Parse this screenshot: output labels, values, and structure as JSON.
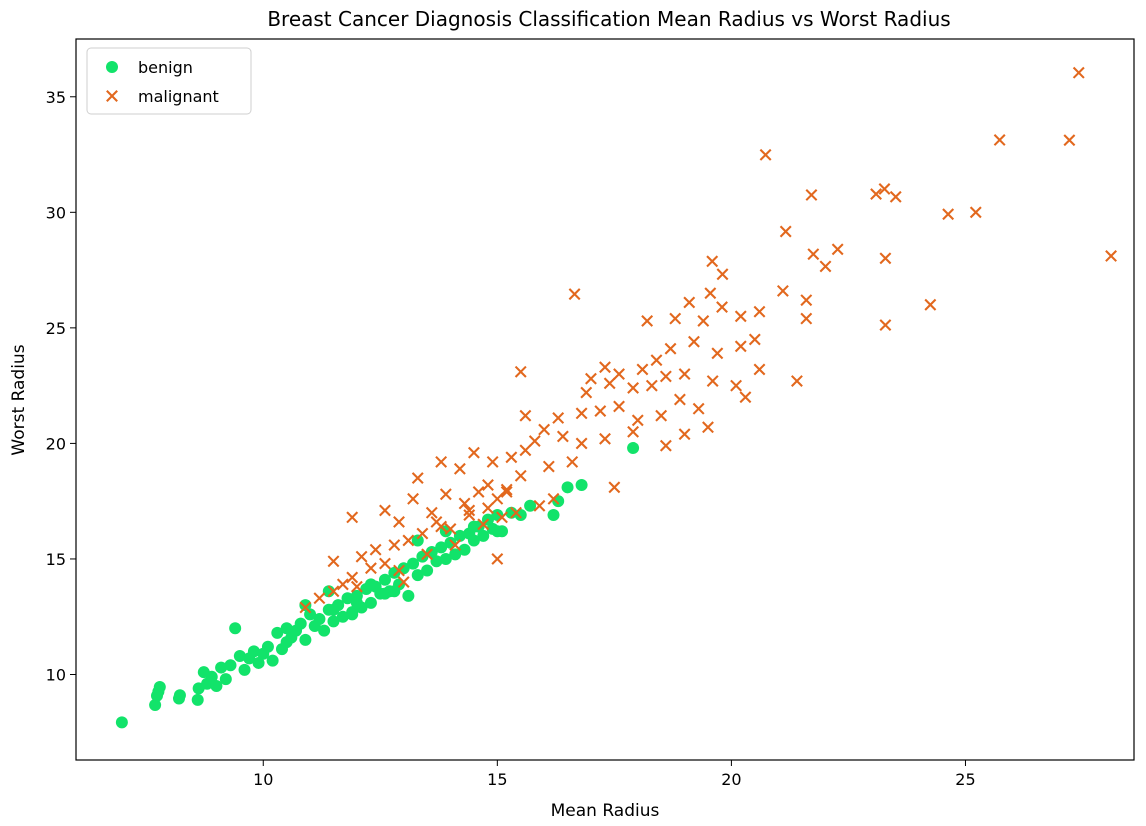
{
  "chart_data": {
    "type": "scatter",
    "title": "Breast Cancer Diagnosis Classification Mean Radius vs Worst Radius",
    "xlabel": "Mean Radius",
    "ylabel": "Worst Radius",
    "xlim": [
      6.0,
      28.6
    ],
    "ylim": [
      6.3,
      37.5
    ],
    "xticks": [
      10,
      15,
      20,
      25
    ],
    "yticks": [
      10,
      15,
      20,
      25,
      30,
      35
    ],
    "grid": false,
    "legend_position": "upper-left",
    "series": [
      {
        "name": "benign",
        "marker": "circle",
        "color": "#12e36a",
        "points": [
          [
            6.98,
            7.93
          ],
          [
            7.69,
            8.68
          ],
          [
            7.73,
            9.08
          ],
          [
            7.76,
            9.26
          ],
          [
            7.79,
            9.46
          ],
          [
            8.2,
            8.96
          ],
          [
            8.22,
            9.1
          ],
          [
            8.6,
            8.9
          ],
          [
            8.62,
            9.4
          ],
          [
            8.73,
            10.1
          ],
          [
            8.8,
            9.6
          ],
          [
            8.9,
            9.9
          ],
          [
            9.0,
            9.5
          ],
          [
            9.1,
            10.3
          ],
          [
            9.2,
            9.8
          ],
          [
            9.3,
            10.4
          ],
          [
            9.4,
            12.0
          ],
          [
            9.5,
            10.8
          ],
          [
            9.6,
            10.2
          ],
          [
            9.7,
            10.7
          ],
          [
            9.8,
            11.0
          ],
          [
            9.9,
            10.5
          ],
          [
            10.0,
            10.9
          ],
          [
            10.1,
            11.2
          ],
          [
            10.2,
            10.6
          ],
          [
            10.3,
            11.8
          ],
          [
            10.4,
            11.1
          ],
          [
            10.5,
            11.4
          ],
          [
            10.6,
            11.6
          ],
          [
            10.7,
            11.9
          ],
          [
            10.8,
            12.2
          ],
          [
            10.9,
            11.5
          ],
          [
            11.0,
            12.6
          ],
          [
            11.1,
            12.1
          ],
          [
            11.2,
            12.4
          ],
          [
            11.3,
            11.9
          ],
          [
            11.4,
            12.8
          ],
          [
            11.5,
            12.3
          ],
          [
            11.6,
            13.0
          ],
          [
            11.7,
            12.5
          ],
          [
            11.8,
            13.3
          ],
          [
            11.9,
            12.7
          ],
          [
            12.0,
            13.4
          ],
          [
            12.1,
            12.9
          ],
          [
            12.2,
            13.7
          ],
          [
            12.3,
            13.1
          ],
          [
            12.4,
            13.8
          ],
          [
            12.5,
            13.5
          ],
          [
            12.6,
            14.1
          ],
          [
            12.7,
            13.6
          ],
          [
            12.8,
            14.4
          ],
          [
            12.9,
            13.9
          ],
          [
            13.0,
            14.6
          ],
          [
            13.1,
            13.4
          ],
          [
            13.2,
            14.8
          ],
          [
            13.3,
            14.3
          ],
          [
            13.4,
            15.1
          ],
          [
            13.5,
            14.5
          ],
          [
            13.6,
            15.3
          ],
          [
            13.7,
            14.9
          ],
          [
            13.8,
            15.5
          ],
          [
            13.9,
            15.0
          ],
          [
            14.0,
            15.7
          ],
          [
            14.1,
            15.2
          ],
          [
            14.2,
            16.0
          ],
          [
            14.3,
            15.4
          ],
          [
            14.4,
            16.1
          ],
          [
            14.5,
            15.8
          ],
          [
            14.6,
            16.4
          ],
          [
            14.7,
            16.0
          ],
          [
            14.8,
            16.7
          ],
          [
            14.9,
            16.3
          ],
          [
            15.0,
            16.9
          ],
          [
            15.1,
            16.2
          ],
          [
            15.3,
            17.0
          ],
          [
            15.5,
            16.9
          ],
          [
            15.7,
            17.3
          ],
          [
            16.2,
            16.9
          ],
          [
            16.3,
            17.5
          ],
          [
            16.5,
            18.1
          ],
          [
            16.8,
            18.2
          ],
          [
            17.9,
            19.8
          ],
          [
            11.9,
            12.6
          ],
          [
            12.3,
            13.9
          ],
          [
            10.5,
            12.0
          ],
          [
            11.4,
            13.6
          ],
          [
            12.0,
            13.1
          ],
          [
            12.6,
            13.5
          ],
          [
            13.3,
            15.8
          ],
          [
            13.9,
            16.2
          ],
          [
            14.5,
            16.4
          ],
          [
            15.0,
            16.2
          ],
          [
            10.9,
            13.0
          ],
          [
            11.5,
            12.8
          ],
          [
            12.8,
            13.6
          ]
        ]
      },
      {
        "name": "malignant",
        "marker": "x",
        "color": "#e2681e",
        "points": [
          [
            27.42,
            36.04
          ],
          [
            20.73,
            32.49
          ],
          [
            25.73,
            33.13
          ],
          [
            27.22,
            33.12
          ],
          [
            23.27,
            31.01
          ],
          [
            23.09,
            30.79
          ],
          [
            23.51,
            30.67
          ],
          [
            21.71,
            30.75
          ],
          [
            24.63,
            29.92
          ],
          [
            25.22,
            30.0
          ],
          [
            21.16,
            29.17
          ],
          [
            22.27,
            28.4
          ],
          [
            21.75,
            28.19
          ],
          [
            22.01,
            27.66
          ],
          [
            23.29,
            28.01
          ],
          [
            28.11,
            28.11
          ],
          [
            19.59,
            27.88
          ],
          [
            19.81,
            27.32
          ],
          [
            16.65,
            26.46
          ],
          [
            24.25,
            26.0
          ],
          [
            23.29,
            25.12
          ],
          [
            19.55,
            26.5
          ],
          [
            21.1,
            26.6
          ],
          [
            21.6,
            26.2
          ],
          [
            20.6,
            25.7
          ],
          [
            20.2,
            25.5
          ],
          [
            19.8,
            25.9
          ],
          [
            19.4,
            25.3
          ],
          [
            19.1,
            26.1
          ],
          [
            18.8,
            25.4
          ],
          [
            18.2,
            25.3
          ],
          [
            21.6,
            25.4
          ],
          [
            20.5,
            24.5
          ],
          [
            20.2,
            24.2
          ],
          [
            19.7,
            23.9
          ],
          [
            19.2,
            24.4
          ],
          [
            18.7,
            24.1
          ],
          [
            18.4,
            23.6
          ],
          [
            18.1,
            23.2
          ],
          [
            17.6,
            23.0
          ],
          [
            17.3,
            23.3
          ],
          [
            17.0,
            22.8
          ],
          [
            21.4,
            22.7
          ],
          [
            20.6,
            23.2
          ],
          [
            20.1,
            22.5
          ],
          [
            19.6,
            22.7
          ],
          [
            19.0,
            23.0
          ],
          [
            18.6,
            22.9
          ],
          [
            18.3,
            22.5
          ],
          [
            17.9,
            22.4
          ],
          [
            17.4,
            22.6
          ],
          [
            16.9,
            22.2
          ],
          [
            15.5,
            23.1
          ],
          [
            20.3,
            22.0
          ],
          [
            19.3,
            21.5
          ],
          [
            18.9,
            21.9
          ],
          [
            18.5,
            21.2
          ],
          [
            18.0,
            21.0
          ],
          [
            17.6,
            21.6
          ],
          [
            17.2,
            21.4
          ],
          [
            16.8,
            21.3
          ],
          [
            16.3,
            21.1
          ],
          [
            15.6,
            21.2
          ],
          [
            19.5,
            20.7
          ],
          [
            19.0,
            20.4
          ],
          [
            18.6,
            19.9
          ],
          [
            17.9,
            20.5
          ],
          [
            17.3,
            20.2
          ],
          [
            16.8,
            20.0
          ],
          [
            16.4,
            20.3
          ],
          [
            16.0,
            20.6
          ],
          [
            15.8,
            20.1
          ],
          [
            15.6,
            19.7
          ],
          [
            15.3,
            19.4
          ],
          [
            14.9,
            19.2
          ],
          [
            14.5,
            19.6
          ],
          [
            14.2,
            18.9
          ],
          [
            13.8,
            19.2
          ],
          [
            13.3,
            18.5
          ],
          [
            16.6,
            19.2
          ],
          [
            16.1,
            19.0
          ],
          [
            15.5,
            18.6
          ],
          [
            15.2,
            18.0
          ],
          [
            15.0,
            17.6
          ],
          [
            14.8,
            18.2
          ],
          [
            14.6,
            17.9
          ],
          [
            14.3,
            17.4
          ],
          [
            13.9,
            17.8
          ],
          [
            13.6,
            17.0
          ],
          [
            13.2,
            17.6
          ],
          [
            12.9,
            16.6
          ],
          [
            12.6,
            17.1
          ],
          [
            11.9,
            16.8
          ],
          [
            17.5,
            18.1
          ],
          [
            16.2,
            17.6
          ],
          [
            15.9,
            17.3
          ],
          [
            15.4,
            17.0
          ],
          [
            15.1,
            16.8
          ],
          [
            14.7,
            16.5
          ],
          [
            14.4,
            16.9
          ],
          [
            14.0,
            16.3
          ],
          [
            13.7,
            16.6
          ],
          [
            13.4,
            16.1
          ],
          [
            13.1,
            15.8
          ],
          [
            12.8,
            15.6
          ],
          [
            12.4,
            15.4
          ],
          [
            12.1,
            15.1
          ],
          [
            11.5,
            14.9
          ],
          [
            15.0,
            15.0
          ],
          [
            14.1,
            15.6
          ],
          [
            13.5,
            15.2
          ],
          [
            12.9,
            14.5
          ],
          [
            12.3,
            14.6
          ],
          [
            11.9,
            14.2
          ],
          [
            11.7,
            13.9
          ],
          [
            11.5,
            13.6
          ],
          [
            11.2,
            13.3
          ],
          [
            10.9,
            12.9
          ],
          [
            12.0,
            13.8
          ],
          [
            12.6,
            14.8
          ],
          [
            13.0,
            14.0
          ],
          [
            14.8,
            17.2
          ],
          [
            15.2,
            17.9
          ],
          [
            14.4,
            17.1
          ],
          [
            13.8,
            16.4
          ]
        ]
      }
    ]
  }
}
